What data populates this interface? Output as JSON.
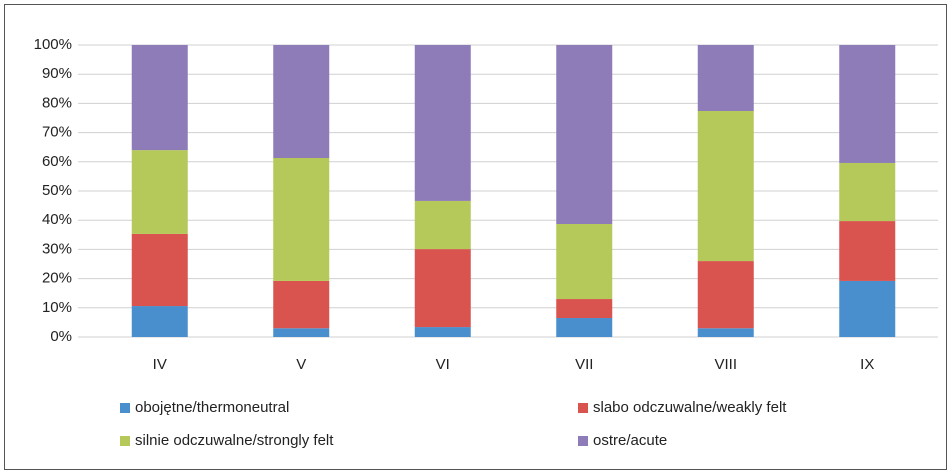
{
  "chart_data": {
    "type": "stacked_bar",
    "categories": [
      "IV",
      "V",
      "VI",
      "VII",
      "VIII",
      "IX"
    ],
    "series": [
      {
        "name": "obojętne/thermoneutral",
        "color": "#4a8fcd",
        "values": [
          10.6,
          3.0,
          3.4,
          6.5,
          3.0,
          19.2
        ]
      },
      {
        "name": "slabo odczuwalne/weakly felt",
        "color": "#d9534f",
        "values": [
          24.7,
          16.2,
          26.7,
          6.5,
          23.0,
          20.5
        ]
      },
      {
        "name": "silnie odczuwalne/strongly felt",
        "color": "#b5c95a",
        "values": [
          28.7,
          42.1,
          16.5,
          25.7,
          51.4,
          19.9
        ]
      },
      {
        "name": "ostre/acute",
        "color": "#8e7cb8",
        "values": [
          36.0,
          38.7,
          53.4,
          61.3,
          22.6,
          40.4
        ]
      }
    ],
    "ylim": [
      0,
      100
    ],
    "yticks": [
      {
        "value": 0,
        "label": "0%"
      },
      {
        "value": 10,
        "label": "10%"
      },
      {
        "value": 20,
        "label": "20%"
      },
      {
        "value": 30,
        "label": "30%"
      },
      {
        "value": 40,
        "label": "40%"
      },
      {
        "value": 50,
        "label": "50%"
      },
      {
        "value": 60,
        "label": "60%"
      },
      {
        "value": 70,
        "label": "70%"
      },
      {
        "value": 80,
        "label": "80%"
      },
      {
        "value": 90,
        "label": "90%"
      },
      {
        "value": 100,
        "label": "100%"
      }
    ],
    "grid": true,
    "legend": "bottom"
  }
}
